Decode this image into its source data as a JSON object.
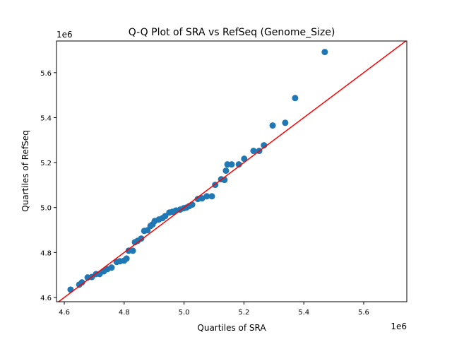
{
  "chart_data": {
    "type": "scatter",
    "title": "Q-Q Plot of SRA vs RefSeq (Genome_Size)",
    "xlabel": "Quartiles of SRA",
    "ylabel": "Quartiles of RefSeq",
    "x_offset_label": "1e6",
    "y_offset_label": "1e6",
    "xlim": [
      4.574,
      5.744
    ],
    "ylim": [
      4.581,
      5.741
    ],
    "x_ticks": [
      "4.6",
      "4.8",
      "5.0",
      "5.2",
      "5.4",
      "5.6"
    ],
    "y_ticks": [
      "4.6",
      "4.8",
      "5.0",
      "5.2",
      "5.4",
      "5.6"
    ],
    "grid": false,
    "reference_line": {
      "type": "y=x",
      "color": "#ff0000"
    },
    "point_color": "#1f77b4",
    "points": [
      [
        4.621,
        4.635
      ],
      [
        4.65,
        4.657
      ],
      [
        4.659,
        4.667
      ],
      [
        4.678,
        4.689
      ],
      [
        4.692,
        4.691
      ],
      [
        4.706,
        4.704
      ],
      [
        4.718,
        4.704
      ],
      [
        4.732,
        4.716
      ],
      [
        4.744,
        4.726
      ],
      [
        4.758,
        4.733
      ],
      [
        4.775,
        4.758
      ],
      [
        4.786,
        4.761
      ],
      [
        4.8,
        4.764
      ],
      [
        4.808,
        4.773
      ],
      [
        4.815,
        4.808
      ],
      [
        4.829,
        4.808
      ],
      [
        4.836,
        4.846
      ],
      [
        4.845,
        4.852
      ],
      [
        4.857,
        4.862
      ],
      [
        4.867,
        4.896
      ],
      [
        4.878,
        4.899
      ],
      [
        4.888,
        4.918
      ],
      [
        4.895,
        4.925
      ],
      [
        4.902,
        4.94
      ],
      [
        4.916,
        4.947
      ],
      [
        4.928,
        4.953
      ],
      [
        4.937,
        4.962
      ],
      [
        4.951,
        4.978
      ],
      [
        4.961,
        4.981
      ],
      [
        4.973,
        4.987
      ],
      [
        4.987,
        4.991
      ],
      [
        4.999,
        4.997
      ],
      [
        5.008,
        5.0
      ],
      [
        5.017,
        5.006
      ],
      [
        5.027,
        5.013
      ],
      [
        5.046,
        5.038
      ],
      [
        5.06,
        5.041
      ],
      [
        5.076,
        5.05
      ],
      [
        5.093,
        5.05
      ],
      [
        5.104,
        5.101
      ],
      [
        5.124,
        5.126
      ],
      [
        5.135,
        5.123
      ],
      [
        5.14,
        5.164
      ],
      [
        5.145,
        5.192
      ],
      [
        5.159,
        5.192
      ],
      [
        5.183,
        5.192
      ],
      [
        5.201,
        5.217
      ],
      [
        5.232,
        5.252
      ],
      [
        5.251,
        5.252
      ],
      [
        5.267,
        5.277
      ],
      [
        5.296,
        5.365
      ],
      [
        5.338,
        5.377
      ],
      [
        5.371,
        5.487
      ],
      [
        5.47,
        5.692
      ]
    ]
  }
}
